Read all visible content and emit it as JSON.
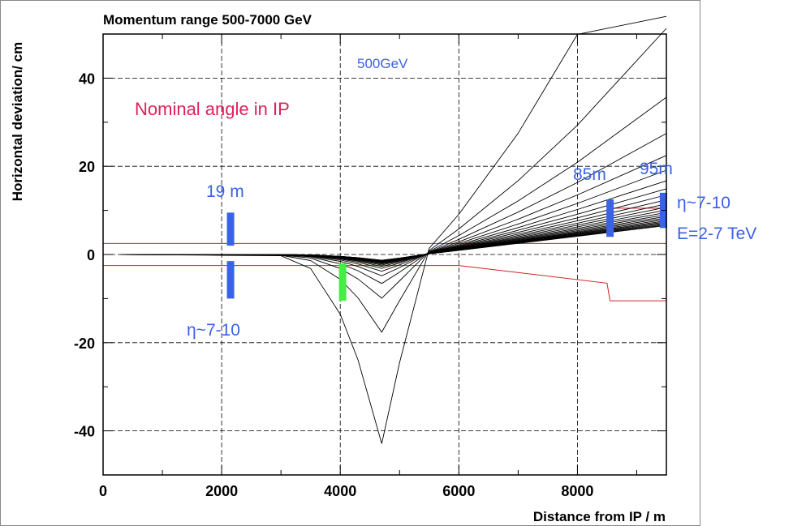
{
  "chart_data": {
    "type": "line",
    "title": "Momentum range 500-7000 GeV",
    "xlabel": "Distance from IP / m",
    "ylabel": "Horizontal deviation/ cm",
    "xlim": [
      0,
      9500
    ],
    "ylim": [
      -50,
      50
    ],
    "x_ticks": [
      "0",
      "2000",
      "4000",
      "6000",
      "8000"
    ],
    "y_ticks": [
      "40",
      "20",
      "0",
      "-20",
      "-40"
    ],
    "grid": true,
    "trajectories": {
      "momentum_range_gev": [
        500,
        7000
      ],
      "count": 24,
      "x": [
        300,
        2000,
        3000,
        3500,
        4000,
        4300,
        4700,
        5000,
        5500,
        6000,
        7000,
        8000,
        9500
      ],
      "lowest_momentum_label": "500GeV",
      "deepest_dip": {
        "x": 4700,
        "y": -46
      }
    },
    "aperture_upper": {
      "x": [
        0,
        9500
      ],
      "y": [
        2.5,
        2.5
      ]
    },
    "aperture_lower": {
      "x": [
        0,
        6000,
        8500,
        8550,
        9500
      ],
      "y": [
        -2.5,
        -2.5,
        -6.5,
        -10.5,
        -10.5
      ]
    },
    "aperture_upper_far": {
      "x": [
        8550,
        9500
      ],
      "y": [
        10.5,
        10.5
      ]
    },
    "detectors": [
      {
        "x": 2150,
        "y_ranges": [
          [
            2,
            9.5
          ],
          [
            -1.5,
            -10
          ]
        ],
        "color": "#3a62e6"
      },
      {
        "x": 4040,
        "y_ranges": [
          [
            -2,
            -10.5
          ]
        ],
        "color": "#44ee44"
      },
      {
        "x": 8550,
        "y_ranges": [
          [
            4,
            12.5
          ]
        ],
        "color": "#3a62e6"
      },
      {
        "x": 9450,
        "y_ranges": [
          [
            6,
            14
          ]
        ],
        "color": "#3a62e6"
      }
    ],
    "annotations": {
      "nominal": "Nominal angle in IP",
      "label_500gev": "500GeV",
      "label_19m": "19 m",
      "label_eta_left": "η~7-10",
      "label_85m": "85m",
      "label_95m": "95m",
      "label_eta_right": "η~7-10",
      "label_energy": "E=2-7 TeV"
    }
  }
}
